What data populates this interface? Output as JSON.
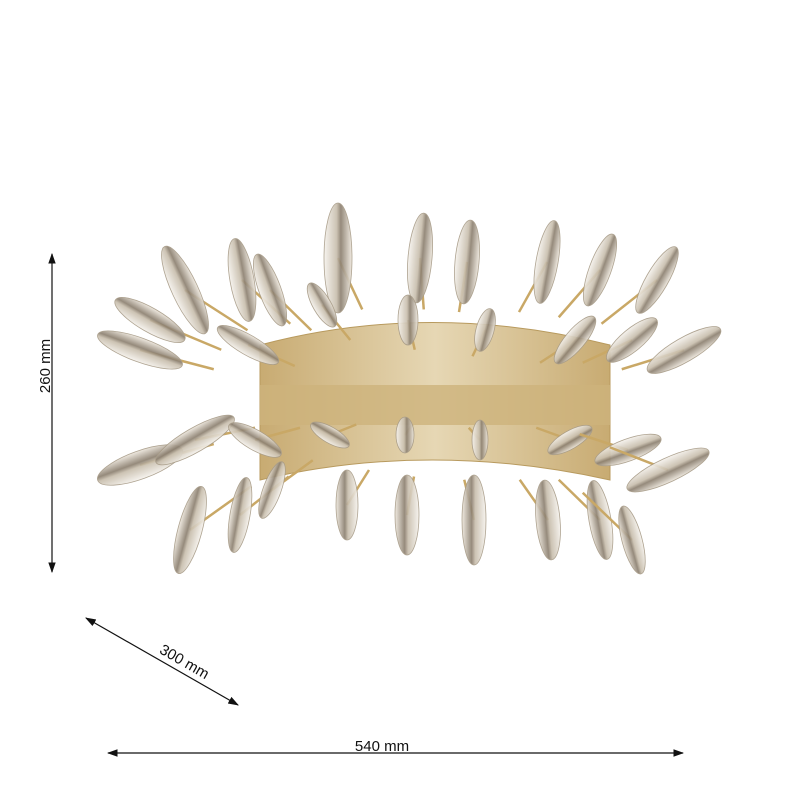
{
  "dimensions": {
    "height": "260 mm",
    "depth": "300 mm",
    "width": "540 mm"
  },
  "colors": {
    "brass": "#c9a866",
    "plate": "#dcc9a0",
    "crystal": "#e8e4dc",
    "arrow": "#111111"
  }
}
